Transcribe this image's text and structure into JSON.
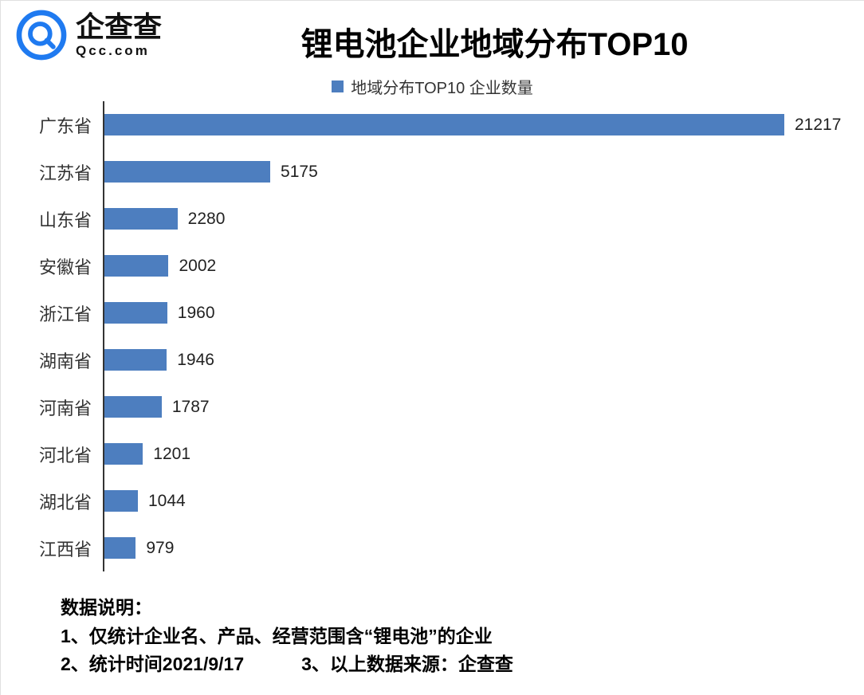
{
  "brand": {
    "name": "企查查",
    "domain": "Qcc.com",
    "logo_color": "#1f7af0"
  },
  "title": "锂电池企业地域分布TOP10",
  "legend": {
    "label": "地域分布TOP10 企业数量",
    "color": "#4d7ebf"
  },
  "chart_data": {
    "type": "bar",
    "orientation": "horizontal",
    "title": "锂电池企业地域分布TOP10",
    "legend_entries": [
      "地域分布TOP10 企业数量"
    ],
    "categories": [
      "广东省",
      "江苏省",
      "山东省",
      "安徽省",
      "浙江省",
      "湖南省",
      "河南省",
      "河北省",
      "湖北省",
      "江西省"
    ],
    "values": [
      21217,
      5175,
      2280,
      2002,
      1960,
      1946,
      1787,
      1201,
      1044,
      979
    ],
    "xlim": [
      0,
      21217
    ],
    "bar_color": "#4d7ebf",
    "grid": false,
    "value_labels": true,
    "xlabel": "",
    "ylabel": ""
  },
  "notes": {
    "heading": "数据说明：",
    "line1": "1、仅统计企业名、产品、经营范围含“锂电池”的企业",
    "line2a": "2、统计时间2021/9/17",
    "line2b": "3、以上数据来源：企查查"
  }
}
